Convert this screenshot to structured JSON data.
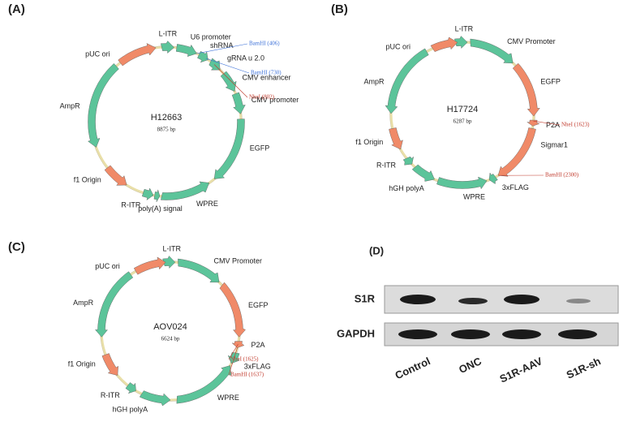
{
  "panels": [
    {
      "label": "(A)",
      "name": "H12663",
      "size": "8875 bp",
      "features": [
        "L-ITR",
        "U6  promoter",
        "shRNA",
        "gRNA u 2.0",
        "CMV enhancer",
        "CMV promoter",
        "EGFP",
        "WPRE",
        "R-ITR",
        "poly(A) signal",
        "f1 Origin",
        "AmpR",
        "pUC ori"
      ],
      "sites": [
        "BamHI (406)",
        "BamHI (730)",
        "NheI (802)"
      ]
    },
    {
      "label": "(B)",
      "name": "H17724",
      "size": "6287 bp",
      "features": [
        "L-ITR",
        "CMV Promoter",
        "EGFP",
        "P2A",
        "Sigmar1",
        "3xFLAG",
        "WPRE",
        "hGH polyA",
        "R-ITR",
        "f1 Origin",
        "AmpR",
        "pUC ori"
      ],
      "sites": [
        "NheI (1623)",
        "BamHI (2300)"
      ]
    },
    {
      "label": "(C)",
      "name": "AOV024",
      "size": "6624 bp",
      "features": [
        "L-ITR",
        "CMV Promoter",
        "EGFP",
        "P2A",
        "3xFLAG",
        "WPRE",
        "hGH polyA",
        "R-ITR",
        "f1 Origin",
        "AmpR",
        "pUC ori"
      ],
      "sites": [
        "NheI (1625)",
        "BamHI (1637)"
      ]
    }
  ],
  "blot": {
    "label": "(D)",
    "rows": [
      "S1R",
      "GAPDH"
    ],
    "lanes": [
      "Control",
      "ONC",
      "S1R-AAV",
      "S1R-sh"
    ]
  }
}
